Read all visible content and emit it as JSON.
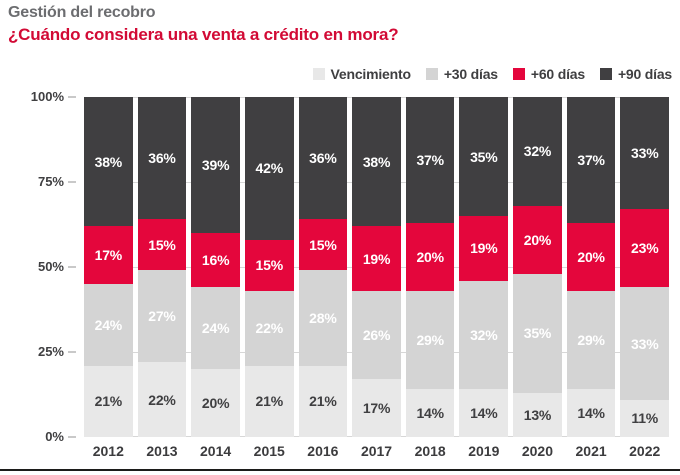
{
  "header": {
    "kicker": "Gestión del recobro",
    "title": "¿Cuándo considera una venta a crédito en mora?"
  },
  "colors": {
    "kicker_text": "#6c6d70",
    "title_text": "#d20a35",
    "grid": "#d7d7d7",
    "bottom_rule": "#1c1c1a"
  },
  "legend": [
    {
      "label": "Vencimiento",
      "color": "#e8e8e8"
    },
    {
      "label": "+30 días",
      "color": "#d4d4d4"
    },
    {
      "label": "+60 días",
      "color": "#e4063c"
    },
    {
      "label": "+90 días",
      "color": "#403f41"
    }
  ],
  "chart_data": {
    "type": "bar",
    "stacked": true,
    "title": "¿Cuándo considera una venta a crédito en mora?",
    "kicker": "Gestión del recobro",
    "categories": [
      "2012",
      "2013",
      "2014",
      "2015",
      "2016",
      "2017",
      "2018",
      "2019",
      "2020",
      "2021",
      "2022"
    ],
    "series": [
      {
        "name": "Vencimiento",
        "color": "#e8e8e8",
        "label_color": "#3f3f41",
        "values": [
          21,
          22,
          20,
          21,
          21,
          17,
          14,
          14,
          13,
          14,
          11
        ]
      },
      {
        "name": "+30 días",
        "color": "#d4d4d4",
        "label_color": "#ffffff",
        "values": [
          24,
          27,
          24,
          22,
          28,
          26,
          29,
          32,
          35,
          29,
          33
        ]
      },
      {
        "name": "+60 días",
        "color": "#e4063c",
        "label_color": "#ffffff",
        "values": [
          17,
          15,
          16,
          15,
          15,
          19,
          20,
          19,
          20,
          20,
          23
        ]
      },
      {
        "name": "+90 días",
        "color": "#403f41",
        "label_color": "#ffffff",
        "values": [
          38,
          36,
          39,
          42,
          36,
          38,
          37,
          35,
          32,
          37,
          33
        ]
      }
    ],
    "value_suffix": "%",
    "y_axis": {
      "ticks": [
        "100%",
        "75%",
        "50%",
        "25%",
        "0%"
      ],
      "min": 0,
      "max": 100
    },
    "grid": true,
    "legend_position": "top-right",
    "xlabel": "",
    "ylabel": ""
  }
}
